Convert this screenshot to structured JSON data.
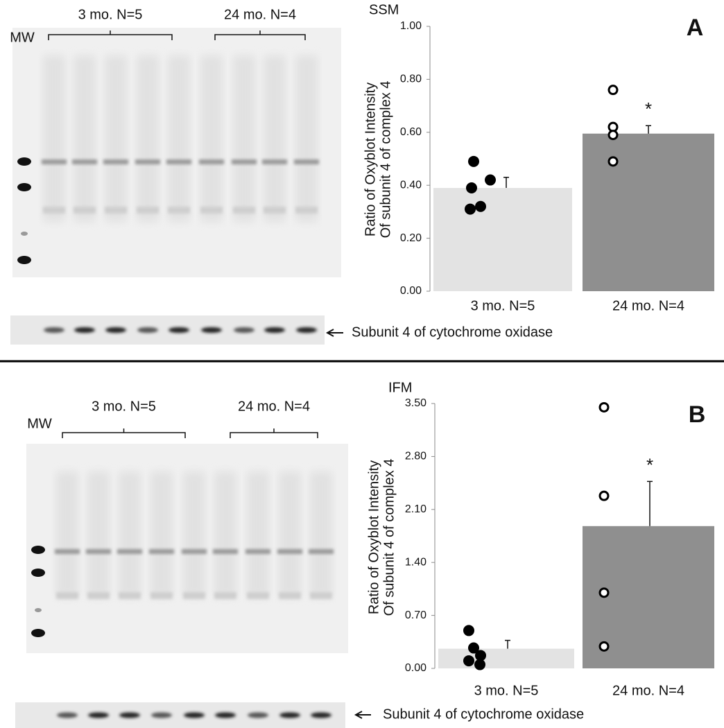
{
  "chart_data": [
    {
      "type": "bar",
      "title": "SSM",
      "panel_label": "A",
      "y_label": [
        "Ratio of Oxyblot Intensity",
        "Of subunit 4 of complex 4"
      ],
      "categories": [
        "3 mo. N=5",
        "24 mo. N=4"
      ],
      "values": [
        0.39,
        0.595
      ],
      "errors": [
        0.04,
        0.03
      ],
      "colors": [
        "#e3e3e3",
        "#8f8f8f"
      ],
      "points": [
        [
          0.49,
          0.42,
          0.39,
          0.32,
          0.31
        ],
        [
          0.76,
          0.62,
          0.59,
          0.49
        ]
      ],
      "point_styles": [
        "filled",
        "open"
      ],
      "significance": [
        null,
        "*"
      ],
      "ylim": [
        0,
        1
      ],
      "yticks": [
        {
          "value": 0,
          "label": "0.00"
        },
        {
          "value": 0.2,
          "label": "0.20"
        },
        {
          "value": 0.4,
          "label": "0.40"
        },
        {
          "value": 0.6,
          "label": "0.60"
        },
        {
          "value": 0.8,
          "label": "0.80"
        },
        {
          "value": 1,
          "label": "1.00"
        }
      ],
      "blot": {
        "mw_label": "MW",
        "groups": [
          "3 mo. N=5",
          "24 mo. N=4"
        ],
        "band_label": "Subunit 4 of cytochrome oxidase"
      }
    },
    {
      "type": "bar",
      "title": "IFM",
      "panel_label": "B",
      "y_label": [
        "Ratio of Oxyblot Intensity",
        "Of subunit 4 of complex 4"
      ],
      "categories": [
        "3 mo. N=5",
        "24 mo. N=4"
      ],
      "values": [
        0.26,
        1.88
      ],
      "errors": [
        0.11,
        0.59
      ],
      "colors": [
        "#e3e3e3",
        "#8f8f8f"
      ],
      "points": [
        [
          0.5,
          0.27,
          0.17,
          0.1,
          0.05
        ],
        [
          3.45,
          2.28,
          1.0,
          0.29
        ]
      ],
      "point_styles": [
        "filled",
        "open"
      ],
      "significance": [
        null,
        "*"
      ],
      "ylim": [
        0,
        3.5
      ],
      "yticks": [
        {
          "value": 0,
          "label": "0.00"
        },
        {
          "value": 0.7,
          "label": "0.70"
        },
        {
          "value": 1.4,
          "label": "1.40"
        },
        {
          "value": 2.1,
          "label": "2.10"
        },
        {
          "value": 2.8,
          "label": "2.80"
        },
        {
          "value": 3.5,
          "label": "3.50"
        }
      ],
      "blot": {
        "mw_label": "MW",
        "groups": [
          "3 mo. N=5",
          "24 mo. N=4"
        ],
        "band_label": "Subunit 4 of cytochrome oxidase"
      }
    }
  ]
}
